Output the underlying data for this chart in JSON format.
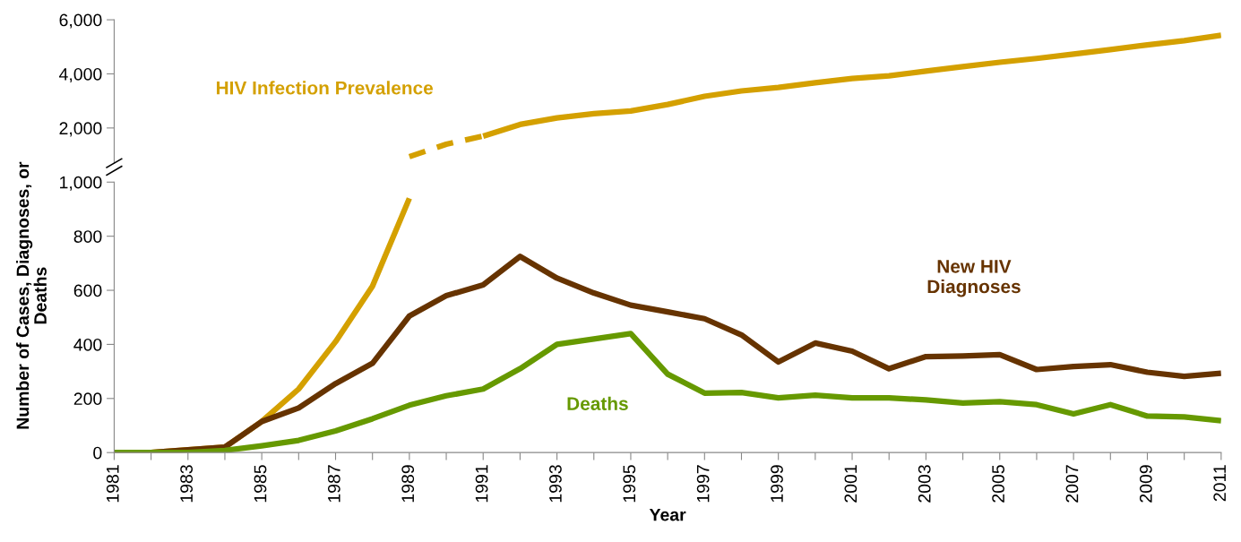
{
  "chart_data": [
    {
      "type": "line",
      "xlim": [
        1981,
        2011
      ],
      "ylim": [
        700,
        6000
      ],
      "yticks": [
        {
          "value": 2000,
          "label": "2,000"
        },
        {
          "value": 4000,
          "label": "4,000"
        },
        {
          "value": 6000,
          "label": "6,000"
        }
      ],
      "tick_labels": "y",
      "grid": false,
      "legend": false,
      "marker": "none",
      "series": [
        {
          "name": "HIV Infection Prevalence",
          "color": "#d4a000",
          "line_style": "solid",
          "x": [
            1991,
            1992,
            1993,
            1994,
            1995,
            1996,
            1997,
            1998,
            1999,
            2000,
            2001,
            2002,
            2003,
            2004,
            2005,
            2006,
            2007,
            2008,
            2009,
            2010,
            2011
          ],
          "values": [
            1700,
            2130,
            2370,
            2530,
            2630,
            2870,
            3170,
            3370,
            3500,
            3670,
            3830,
            3930,
            4100,
            4270,
            4430,
            4570,
            4730,
            4900,
            5070,
            5230,
            5430
          ]
        },
        {
          "color": "#d4a000",
          "line_style": "dashed",
          "x": [
            1989,
            1990,
            1991
          ],
          "values": [
            940,
            1400,
            1700
          ]
        }
      ]
    },
    {
      "type": "line",
      "xlabel": "Year",
      "ylabel": "Number of Cases, Diagnoses, or\nDeaths",
      "x": [
        1981,
        1982,
        1983,
        1984,
        1985,
        1986,
        1987,
        1988,
        1989,
        1990,
        1991,
        1992,
        1993,
        1994,
        1995,
        1996,
        1997,
        1998,
        1999,
        2000,
        2001,
        2002,
        2003,
        2004,
        2005,
        2006,
        2007,
        2008,
        2009,
        2010,
        2011
      ],
      "xlim": [
        1981,
        2011
      ],
      "xticks": [
        1981,
        {
          "value": 1982,
          "label": null
        },
        1983,
        {
          "value": 1984,
          "label": null
        },
        1985,
        {
          "value": 1986,
          "label": null
        },
        1987,
        {
          "value": 1988,
          "label": null
        },
        1989,
        {
          "value": 1990,
          "label": null
        },
        1991,
        {
          "value": 1992,
          "label": null
        },
        1993,
        {
          "value": 1994,
          "label": null
        },
        1995,
        {
          "value": 1996,
          "label": null
        },
        1997,
        {
          "value": 1998,
          "label": null
        },
        1999,
        {
          "value": 2000,
          "label": null
        },
        2001,
        {
          "value": 2002,
          "label": null
        },
        2003,
        {
          "value": 2004,
          "label": null
        },
        2005,
        {
          "value": 2006,
          "label": null
        },
        2007,
        {
          "value": 2008,
          "label": null
        },
        2009,
        {
          "value": 2010,
          "label": null
        },
        2011
      ],
      "ylim": [
        0,
        1000
      ],
      "yticks": [
        0,
        200,
        400,
        600,
        800,
        {
          "value": 1000,
          "label": "1,000"
        }
      ],
      "grid": false,
      "legend": false,
      "marker": "none",
      "series": [
        {
          "color": "#d4a000",
          "line_style": "solid",
          "values": [
            0,
            0,
            10,
            20,
            115,
            235,
            410,
            615,
            940,
            null,
            null,
            null,
            null,
            null,
            null,
            null,
            null,
            null,
            null,
            null,
            null,
            null,
            null,
            null,
            null,
            null,
            null,
            null,
            null,
            null,
            null
          ]
        },
        {
          "name": "New HIV\nDiagnoses",
          "color": "#663300",
          "line_style": "solid",
          "values": [
            0,
            0,
            10,
            20,
            115,
            165,
            255,
            330,
            505,
            580,
            620,
            725,
            645,
            590,
            545,
            520,
            495,
            435,
            335,
            405,
            375,
            310,
            355,
            357,
            362,
            307,
            318,
            325,
            297,
            282,
            293
          ]
        },
        {
          "name": "Deaths",
          "color": "#669900",
          "line_style": "solid",
          "values": [
            0,
            0,
            0,
            8,
            25,
            45,
            80,
            125,
            175,
            210,
            235,
            310,
            400,
            420,
            440,
            290,
            220,
            222,
            202,
            212,
            202,
            202,
            195,
            183,
            188,
            177,
            143,
            177,
            135,
            132,
            118
          ]
        }
      ]
    }
  ]
}
